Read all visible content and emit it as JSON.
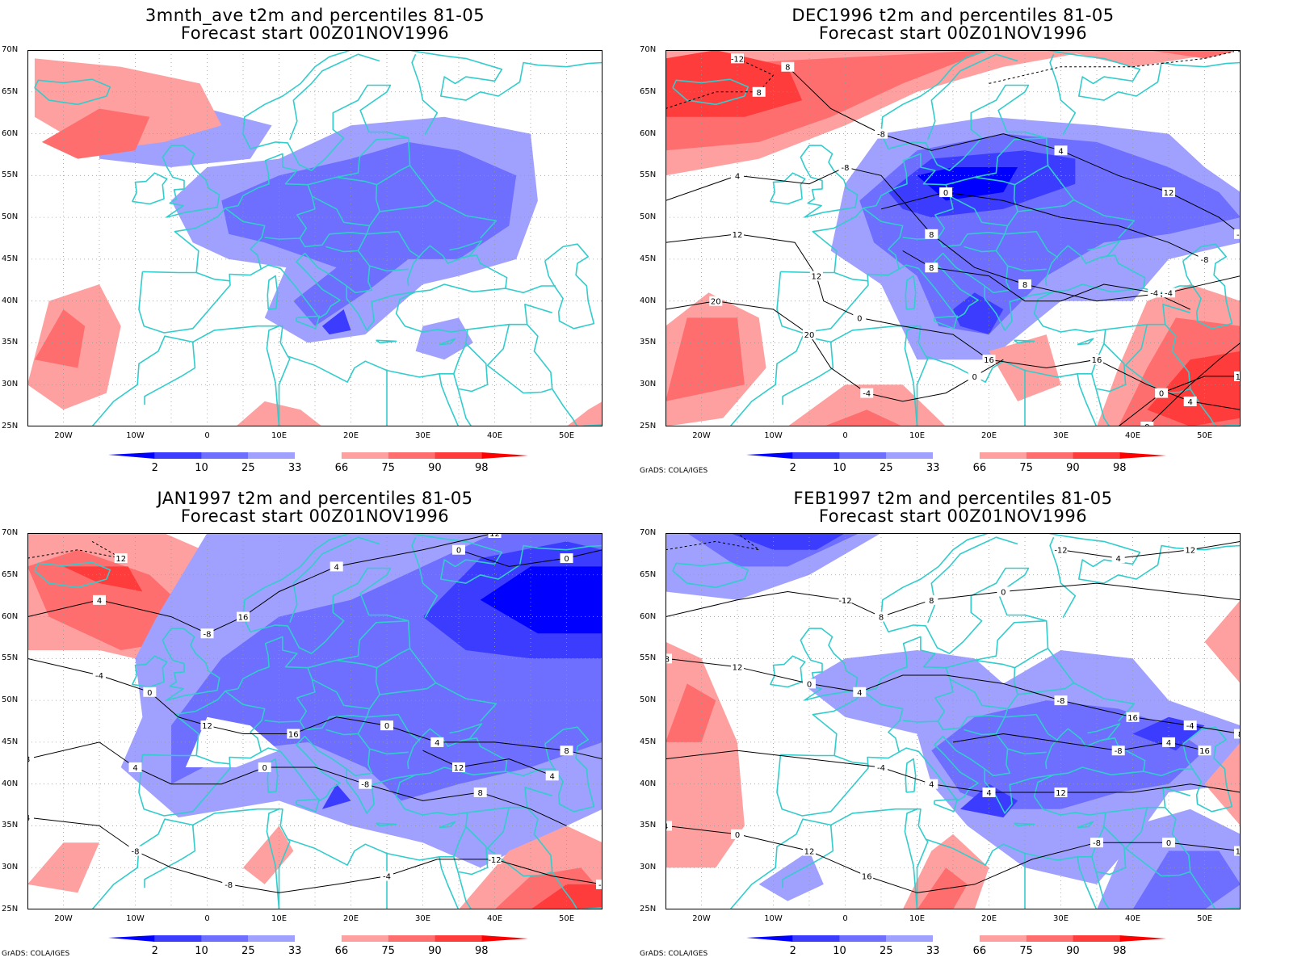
{
  "credit": "GrADS: COLA/IGES",
  "colors": {
    "coastline": "#33cccc",
    "contour": "#000000",
    "grid": "#999999",
    "shades": [
      "#0000ff",
      "#3c3cff",
      "#6e6eff",
      "#a0a0ff",
      "#ffffff",
      "#ffa0a0",
      "#ff6e6e",
      "#ff3c3c",
      "#ff0000"
    ]
  },
  "y_ticks": [
    "70N",
    "65N",
    "60N",
    "55N",
    "50N",
    "45N",
    "40N",
    "35N",
    "30N",
    "25N"
  ],
  "x_ticks": [
    "20W",
    "10W",
    "0",
    "10E",
    "20E",
    "30E",
    "40E",
    "50E"
  ],
  "colorbar_labels": [
    "2",
    "10",
    "25",
    "33",
    "66",
    "75",
    "90",
    "98"
  ],
  "panels": [
    {
      "title_line1": "3mnth_ave t2m and percentiles 81-05",
      "title_line2": "Forecast start 00Z01NOV1996",
      "show_credit": false,
      "contour_labels": []
    },
    {
      "title_line1": "DEC1996 t2m and percentiles 81-05",
      "title_line2": "Forecast start 00Z01NOV1996",
      "show_credit": true,
      "contour_labels": [
        "-8",
        "-4",
        "0",
        "4",
        "-4",
        "-8",
        "-4",
        "0",
        "8",
        "0",
        "12",
        "4",
        "8",
        "12",
        "16",
        "20",
        "8",
        "12",
        "-12",
        "-8",
        "-4",
        "0",
        "4",
        "8",
        "12",
        "16",
        "20",
        "0",
        "4",
        "8"
      ]
    },
    {
      "title_line1": "JAN1997 t2m and percentiles 81-05",
      "title_line2": "Forecast start 00Z01NOV1996",
      "show_credit": true,
      "contour_labels": [
        "-8",
        "-4",
        "0",
        "4",
        "8",
        "-8",
        "-4",
        "0",
        "4",
        "12",
        "16",
        "8",
        "-8",
        "-8",
        "-12",
        "0",
        "4",
        "4",
        "12",
        "8",
        "0",
        "4",
        "-4",
        "12",
        "12",
        "16",
        "0",
        "4"
      ]
    },
    {
      "title_line1": "FEB1997 t2m and percentiles 81-05",
      "title_line2": "Forecast start 00Z01NOV1996",
      "show_credit": true,
      "contour_labels": [
        "-12",
        "-8",
        "-8",
        "-4",
        "4",
        "-8",
        "-12",
        "-8",
        "8",
        "12",
        "16",
        "4",
        "0",
        "0",
        "4",
        "4",
        "8",
        "0",
        "-4",
        "4",
        "12",
        "12",
        "12",
        "16",
        "0",
        "4",
        "8",
        "12",
        "16"
      ]
    }
  ]
}
